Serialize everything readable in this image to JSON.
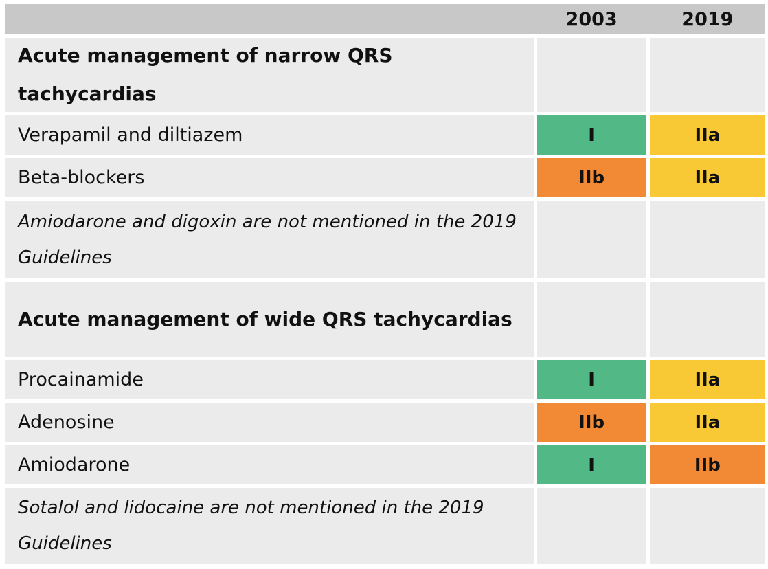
{
  "header": {
    "col_2003": "2003",
    "col_2019": "2019"
  },
  "rows": [
    {
      "label": "Acute management of narrow QRS tachycardias",
      "style": "section"
    },
    {
      "label": "Verapamil and diltiazem",
      "c2003": "I",
      "c2019": "IIa",
      "color2003": "#52b986",
      "color2019": "#f9c935"
    },
    {
      "label": "Beta-blockers",
      "c2003": "IIb",
      "c2019": "IIa",
      "color2003": "#f28a35",
      "color2019": "#f9c935"
    },
    {
      "label": "Amiodarone and digoxin are not mentioned in the 2019 Guidelines",
      "style": "note"
    },
    {
      "label": "Acute management of wide QRS tachycardias",
      "style": "section"
    },
    {
      "label": "Procainamide",
      "c2003": "I",
      "c2019": "IIa",
      "color2003": "#52b986",
      "color2019": "#f9c935"
    },
    {
      "label": "Adenosine",
      "c2003": "IIb",
      "c2019": "IIa",
      "color2003": "#f28a35",
      "color2019": "#f9c935"
    },
    {
      "label": "Amiodarone",
      "c2003": "I",
      "c2019": "IIb",
      "color2003": "#52b986",
      "color2019": "#f28a35"
    },
    {
      "label": "Sotalol and lidocaine are not mentioned in the 2019 Guidelines",
      "style": "note"
    }
  ]
}
